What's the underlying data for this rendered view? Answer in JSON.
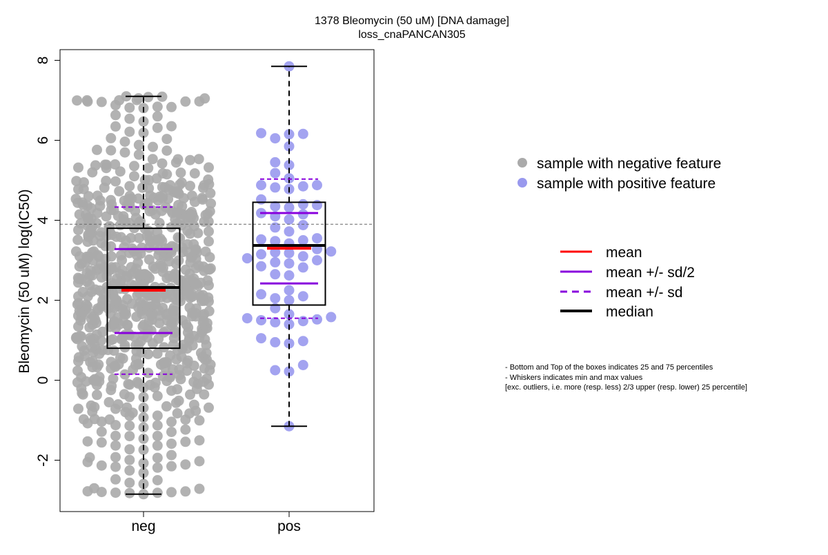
{
  "chart_data": {
    "type": "box+beeswarm",
    "title": "1378 Bleomycin (50 uM) [DNA damage]",
    "subtitle": "loss_cnaPANCAN305",
    "xlabel": "",
    "ylabel": "Bleomycin (50 uM) log(IC50)",
    "ylim": [
      -3.3,
      8.3
    ],
    "yticks": [
      -2,
      0,
      2,
      4,
      6,
      8
    ],
    "categories": [
      "neg",
      "pos"
    ],
    "reference_line": 3.9,
    "grid": false,
    "groups": [
      {
        "name": "neg",
        "point_color": "#aaaaaa",
        "n_points": 760,
        "box": {
          "q1": 0.8,
          "median": 2.32,
          "q3": 3.8,
          "whisker_low": -2.85,
          "whisker_high": 7.1
        },
        "mean": 2.25,
        "mean_plus_sd_half": 3.28,
        "mean_minus_sd_half": 1.18,
        "mean_plus_sd": 4.33,
        "mean_minus_sd": 0.15
      },
      {
        "name": "pos",
        "point_color": "#9999ee",
        "box": {
          "q1": 1.88,
          "median": 3.37,
          "q3": 4.45,
          "whisker_low": -1.15,
          "whisker_high": 7.85
        },
        "mean": 3.3,
        "mean_plus_sd_half": 4.18,
        "mean_minus_sd_half": 2.42,
        "mean_plus_sd": 5.03,
        "mean_minus_sd": 1.55,
        "values": [
          7.85,
          6.18,
          6.15,
          6.05,
          6.16,
          5.85,
          5.45,
          5.38,
          5.18,
          5.05,
          4.88,
          4.82,
          4.85,
          4.88,
          4.78,
          4.52,
          4.4,
          4.38,
          4.35,
          4.32,
          4.15,
          4.18,
          4.1,
          4.02,
          3.88,
          3.82,
          3.72,
          3.55,
          3.52,
          3.5,
          3.48,
          3.42,
          3.28,
          3.22,
          3.2,
          3.18,
          3.15,
          3.1,
          3.05,
          3.0,
          2.95,
          2.92,
          2.85,
          2.82,
          2.65,
          2.62,
          2.25,
          2.15,
          2.1,
          2.05,
          2.0,
          1.8,
          1.65,
          1.58,
          1.55,
          1.52,
          1.5,
          1.48,
          1.45,
          1.4,
          1.05,
          0.98,
          0.95,
          0.92,
          0.38,
          0.25,
          0.22,
          -1.15
        ]
      }
    ],
    "legend_points": [
      {
        "label": "sample with negative feature",
        "color": "#aaaaaa"
      },
      {
        "label": "sample with positive feature",
        "color": "#9999ee"
      }
    ],
    "legend_lines": [
      {
        "label": "mean",
        "color": "#ff0000",
        "style": "solid"
      },
      {
        "label": "mean +/- sd/2",
        "color": "#8800dd",
        "style": "solid"
      },
      {
        "label": "mean +/- sd",
        "color": "#8800dd",
        "style": "dashed"
      },
      {
        "label": "median",
        "color": "#000000",
        "style": "solid"
      }
    ],
    "notes": [
      "- Bottom and Top of the boxes indicates 25 and 75 percentiles",
      "- Whiskers indicates min and max values",
      "[exc. outliers, i.e. more (resp. less) 2/3 upper (resp. lower) 25 percentile]"
    ]
  }
}
